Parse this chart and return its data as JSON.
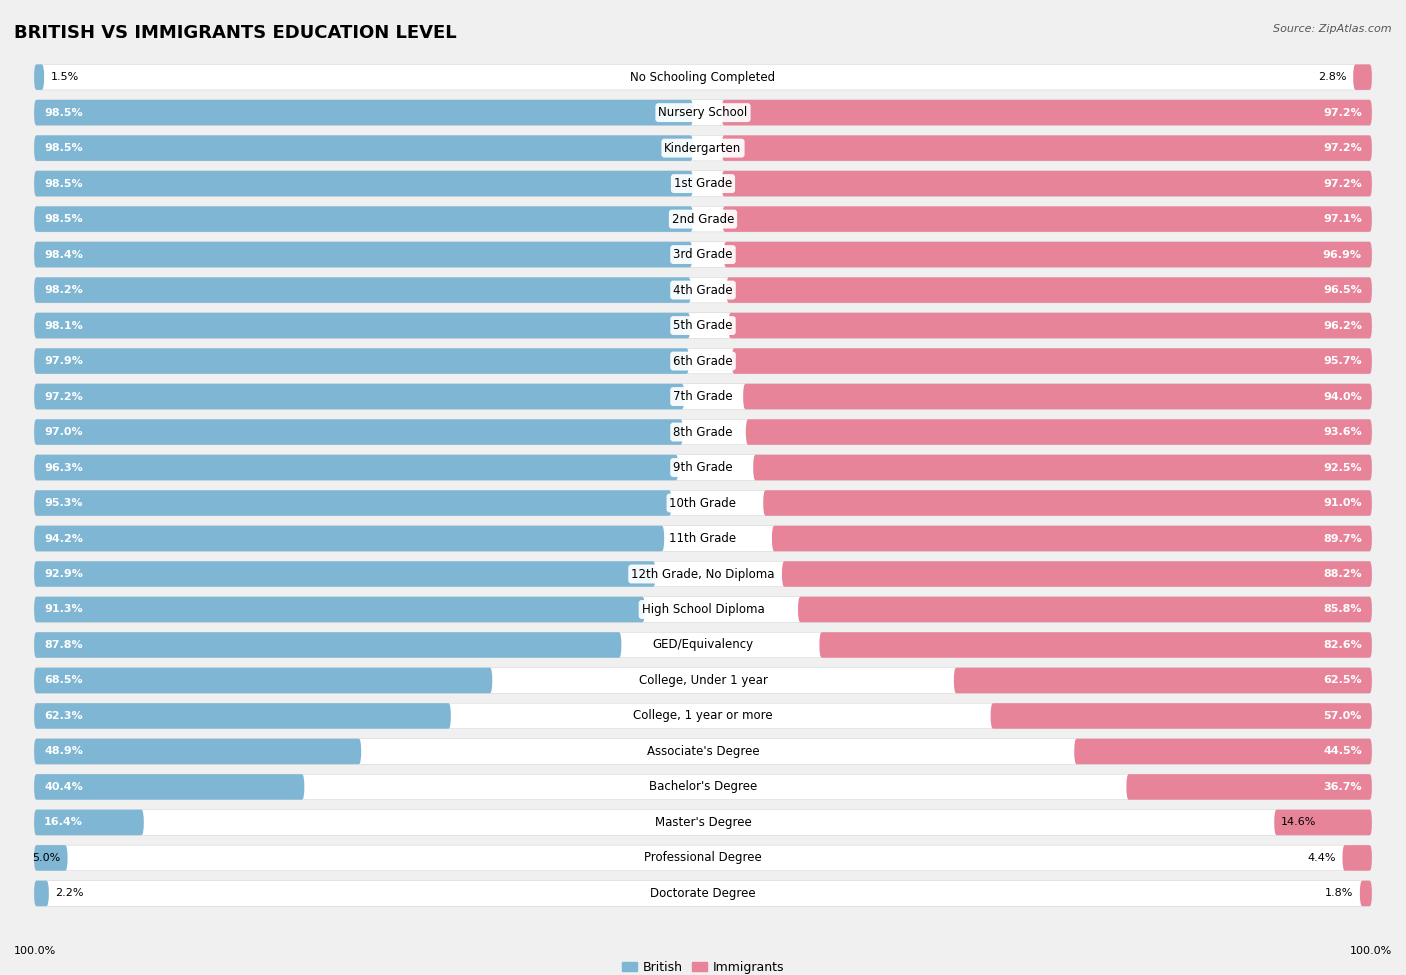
{
  "title": "BRITISH VS IMMIGRANTS EDUCATION LEVEL",
  "source": "Source: ZipAtlas.com",
  "categories": [
    "No Schooling Completed",
    "Nursery School",
    "Kindergarten",
    "1st Grade",
    "2nd Grade",
    "3rd Grade",
    "4th Grade",
    "5th Grade",
    "6th Grade",
    "7th Grade",
    "8th Grade",
    "9th Grade",
    "10th Grade",
    "11th Grade",
    "12th Grade, No Diploma",
    "High School Diploma",
    "GED/Equivalency",
    "College, Under 1 year",
    "College, 1 year or more",
    "Associate's Degree",
    "Bachelor's Degree",
    "Master's Degree",
    "Professional Degree",
    "Doctorate Degree"
  ],
  "british": [
    1.5,
    98.5,
    98.5,
    98.5,
    98.5,
    98.4,
    98.2,
    98.1,
    97.9,
    97.2,
    97.0,
    96.3,
    95.3,
    94.2,
    92.9,
    91.3,
    87.8,
    68.5,
    62.3,
    48.9,
    40.4,
    16.4,
    5.0,
    2.2
  ],
  "immigrants": [
    2.8,
    97.2,
    97.2,
    97.2,
    97.1,
    96.9,
    96.5,
    96.2,
    95.7,
    94.0,
    93.6,
    92.5,
    91.0,
    89.7,
    88.2,
    85.8,
    82.6,
    62.5,
    57.0,
    44.5,
    36.7,
    14.6,
    4.4,
    1.8
  ],
  "british_color": "#7eb6d4",
  "immigrants_color": "#e8849a",
  "background_color": "#f0f0f0",
  "bar_background": "#ffffff",
  "row_bg_color": "#e8e8e8",
  "title_fontsize": 13,
  "label_fontsize": 8.5,
  "value_fontsize": 8.0
}
